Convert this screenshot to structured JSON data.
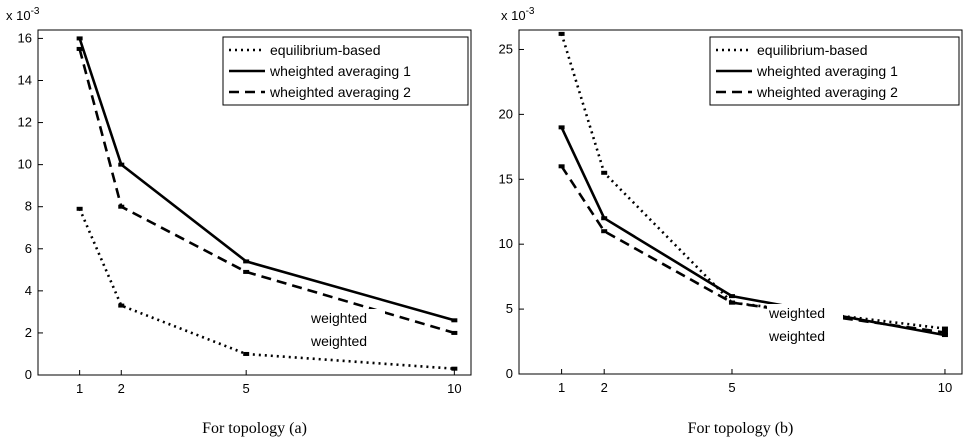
{
  "chart_data": [
    {
      "type": "line",
      "xlabel": "For topology (a)",
      "ylabel": "",
      "exponent_label": "x 10",
      "exponent_power": "-3",
      "x": [
        1,
        2,
        5,
        10
      ],
      "xticks": [
        "1",
        "2",
        "5",
        "10"
      ],
      "xlim": [
        0,
        10.4
      ],
      "ylim": [
        0,
        16.4
      ],
      "yticks": [
        "0",
        "2",
        "4",
        "6",
        "8",
        "10",
        "12",
        "14",
        "16"
      ],
      "legend_position": "top-right",
      "series": [
        {
          "name": "equilibrium-based",
          "style": "dotted",
          "values": [
            7.9,
            3.3,
            1.0,
            0.3
          ]
        },
        {
          "name": "wheighted averaging 1",
          "style": "solid",
          "values": [
            16.0,
            10.0,
            5.4,
            2.6
          ]
        },
        {
          "name": "wheighted averaging 2",
          "style": "dashed",
          "values": [
            15.5,
            8.0,
            4.9,
            2.0
          ]
        }
      ],
      "annotations": [
        "weighted",
        "weighted"
      ]
    },
    {
      "type": "line",
      "xlabel": "For topology (b)",
      "ylabel": "",
      "exponent_label": "x 10",
      "exponent_power": "-3",
      "x": [
        1,
        2,
        5,
        10
      ],
      "xticks": [
        "1",
        "2",
        "5",
        "10"
      ],
      "xlim": [
        0,
        10.4
      ],
      "ylim": [
        0,
        26.5
      ],
      "yticks": [
        "0",
        "5",
        "10",
        "15",
        "20",
        "25"
      ],
      "legend_position": "top-right",
      "series": [
        {
          "name": "equilibrium-based",
          "style": "dotted",
          "values": [
            26.2,
            15.5,
            5.5,
            3.5
          ]
        },
        {
          "name": "wheighted averaging 1",
          "style": "solid",
          "values": [
            19.0,
            12.0,
            6.0,
            3.0
          ]
        },
        {
          "name": "wheighted averaging 2",
          "style": "dashed",
          "values": [
            16.0,
            11.0,
            5.5,
            3.2
          ]
        }
      ],
      "annotations": [
        "weighted",
        "weighted"
      ]
    }
  ]
}
